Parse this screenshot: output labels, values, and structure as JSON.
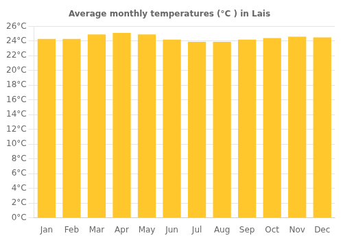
{
  "chart_data": {
    "type": "bar",
    "title": "Average monthly temperatures (°C ) in Lais",
    "categories": [
      "Jan",
      "Feb",
      "Mar",
      "Apr",
      "May",
      "Jun",
      "Jul",
      "Aug",
      "Sep",
      "Oct",
      "Nov",
      "Dec"
    ],
    "values": [
      24.3,
      24.3,
      24.9,
      25.1,
      24.9,
      24.2,
      23.9,
      23.9,
      24.2,
      24.4,
      24.6,
      24.5
    ],
    "color": "#FFC72C",
    "ylim": [
      0,
      26
    ],
    "yticks": [
      {
        "value": 0,
        "label": "0°C"
      },
      {
        "value": 2,
        "label": "2°C"
      },
      {
        "value": 4,
        "label": "4°C"
      },
      {
        "value": 6,
        "label": "6°C"
      },
      {
        "value": 8,
        "label": "8°C"
      },
      {
        "value": 10,
        "label": "10°C"
      },
      {
        "value": 12,
        "label": "12°C"
      },
      {
        "value": 14,
        "label": "14°C"
      },
      {
        "value": 16,
        "label": "16°C"
      },
      {
        "value": 18,
        "label": "18°C"
      },
      {
        "value": 20,
        "label": "20°C"
      },
      {
        "value": 22,
        "label": "22°C"
      },
      {
        "value": 24,
        "label": "24°C"
      },
      {
        "value": 26,
        "label": "26°C"
      }
    ],
    "grid": true
  }
}
